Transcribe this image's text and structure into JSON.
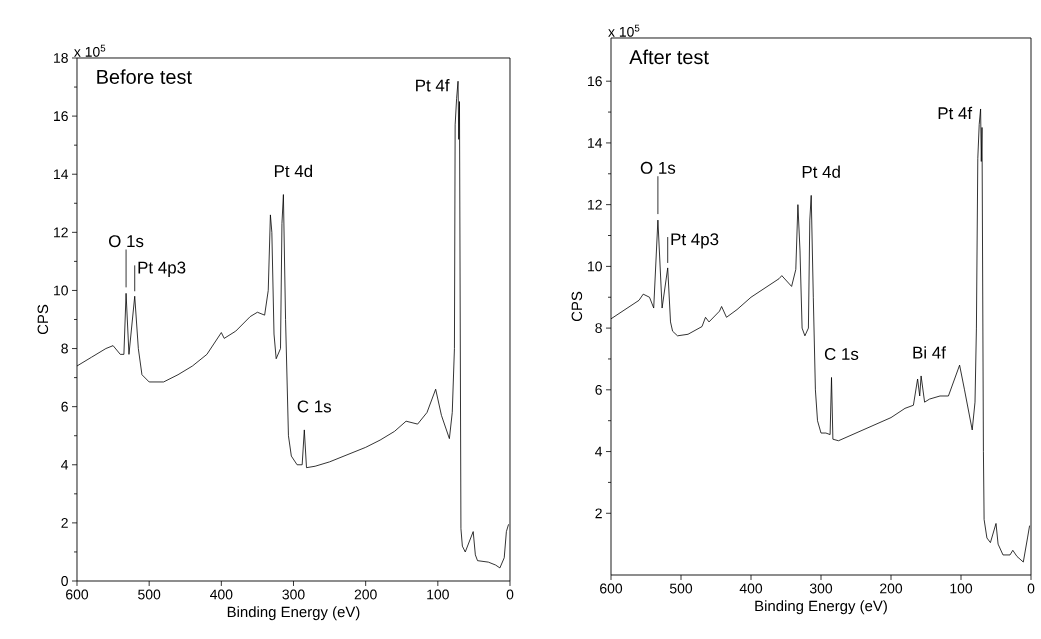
{
  "chart_data": [
    {
      "type": "line",
      "title": "Before test",
      "xlabel": "Binding Energy (eV)",
      "ylabel": "CPS",
      "xlim": [
        600,
        0
      ],
      "xticks": [
        600,
        500,
        400,
        300,
        200,
        100,
        0
      ],
      "ylim": [
        0,
        18
      ],
      "yticks": [
        0,
        2,
        4,
        6,
        8,
        10,
        12,
        14,
        16,
        18
      ],
      "annotations": [
        "x 10$^{5}$",
        {
          "text": "O 1s",
          "x": 532,
          "y": 9.9
        },
        {
          "text": "Pt 4p3",
          "x": 520,
          "y": 9.8
        },
        {
          "text": "Pt 4d",
          "x": 314,
          "y": 13.3
        },
        {
          "text": "C 1s",
          "x": 285,
          "y": 5.2
        },
        {
          "text": "Pt 4f",
          "x": 72,
          "y": 17.2
        }
      ],
      "series": [
        {
          "color": "#000000",
          "x": [
            600,
            580,
            560,
            550,
            540,
            535,
            532,
            528,
            520,
            515,
            510,
            500,
            480,
            460,
            440,
            420,
            400,
            396,
            380,
            360,
            350,
            340,
            335,
            332,
            330,
            327,
            324,
            318,
            316,
            314,
            311,
            307,
            303,
            295,
            288,
            285,
            282,
            270,
            250,
            230,
            200,
            180,
            160,
            144,
            128,
            115,
            103,
            95,
            84,
            80,
            77,
            76,
            74,
            72,
            71,
            70,
            68,
            66,
            62,
            51,
            48,
            45,
            30,
            20,
            14,
            8,
            5,
            2
          ],
          "values": [
            7.4,
            7.7,
            8.0,
            8.1,
            7.8,
            7.8,
            9.9,
            7.8,
            9.8,
            8.0,
            7.1,
            6.85,
            6.85,
            7.1,
            7.4,
            7.8,
            8.55,
            8.35,
            8.6,
            9.1,
            9.25,
            9.15,
            10,
            12.6,
            12.0,
            8.5,
            7.65,
            8.0,
            12.3,
            13.3,
            9.0,
            5.0,
            4.3,
            4.0,
            4.0,
            5.2,
            3.9,
            3.95,
            4.1,
            4.3,
            4.6,
            4.85,
            5.15,
            5.5,
            5.4,
            5.8,
            6.6,
            5.7,
            4.9,
            5.8,
            8.0,
            15.7,
            16.6,
            17.2,
            15.2,
            16.5,
            1.8,
            1.2,
            1.0,
            1.7,
            0.9,
            0.7,
            0.65,
            0.55,
            0.45,
            0.8,
            1.7,
            1.95
          ]
        }
      ]
    },
    {
      "type": "line",
      "title": "After test",
      "xlabel": "Binding Energy (eV)",
      "ylabel": "CPS",
      "xlim": [
        600,
        0
      ],
      "xticks": [
        600,
        500,
        400,
        300,
        200,
        100,
        0
      ],
      "ylim": [
        0,
        17.4
      ],
      "yticks": [
        2,
        4,
        6,
        8,
        10,
        12,
        14,
        16
      ],
      "annotations": [
        "x 10$^{5}$",
        {
          "text": "O 1s",
          "x": 533,
          "y": 11.5
        },
        {
          "text": "Pt 4p3",
          "x": 519,
          "y": 9.95
        },
        {
          "text": "Pt 4d",
          "x": 314,
          "y": 12.3
        },
        {
          "text": "C 1s",
          "x": 285,
          "y": 6.4
        },
        {
          "text": "Bi 4f",
          "x": 160,
          "y": 6.45
        },
        {
          "text": "Pt 4f",
          "x": 72,
          "y": 15.1
        }
      ],
      "series": [
        {
          "color": "#000000",
          "x": [
            600,
            580,
            560,
            554,
            545,
            539,
            533,
            527,
            519,
            515,
            512,
            505,
            490,
            470,
            465,
            460,
            445,
            442,
            435,
            420,
            400,
            380,
            360,
            356,
            342,
            336,
            333,
            330,
            327,
            323,
            318,
            316,
            314,
            311,
            308,
            305,
            300,
            293,
            287,
            285,
            283,
            275,
            250,
            220,
            200,
            180,
            168,
            162,
            159,
            157,
            152,
            145,
            130,
            118,
            102,
            95,
            84,
            80,
            78,
            76,
            74,
            72,
            71,
            70,
            68,
            67,
            63,
            58,
            50,
            47,
            40,
            30,
            26,
            20,
            11,
            5,
            2
          ],
          "values": [
            8.3,
            8.6,
            8.9,
            9.1,
            9.0,
            8.65,
            11.5,
            8.65,
            9.95,
            8.2,
            7.9,
            7.75,
            7.8,
            8.05,
            8.35,
            8.2,
            8.55,
            8.7,
            8.35,
            8.6,
            9.0,
            9.3,
            9.6,
            9.7,
            9.35,
            9.9,
            12.0,
            10.5,
            8.0,
            7.75,
            8.0,
            11.5,
            12.3,
            9.0,
            6.0,
            5.0,
            4.6,
            4.6,
            4.55,
            6.4,
            4.4,
            4.35,
            4.6,
            4.9,
            5.1,
            5.4,
            5.5,
            6.35,
            5.8,
            6.45,
            5.6,
            5.7,
            5.8,
            5.8,
            6.8,
            6.0,
            4.7,
            5.6,
            8.0,
            13.5,
            14.6,
            15.1,
            13.4,
            14.5,
            4.0,
            1.8,
            1.2,
            1.05,
            1.67,
            1.0,
            0.65,
            0.65,
            0.8,
            0.6,
            0.42,
            1.2,
            1.6
          ]
        }
      ]
    }
  ]
}
